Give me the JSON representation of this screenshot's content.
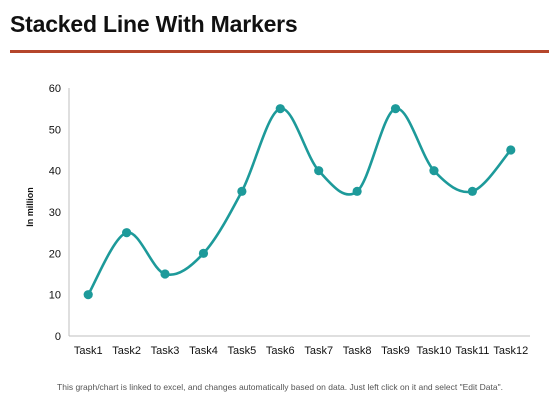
{
  "slide": {
    "title": "Stacked Line With Markers",
    "footnote": "This graph/chart is linked to excel, and changes automatically based on data. Just left click on it and select \"Edit Data\"."
  },
  "colors": {
    "title_rule": "#b5462b",
    "series_line": "#1d9a9a",
    "axis": "#bfbfbf"
  },
  "chart_data": {
    "type": "line",
    "categories": [
      "Task1",
      "Task2",
      "Task3",
      "Task4",
      "Task5",
      "Task6",
      "Task7",
      "Task8",
      "Task9",
      "Task10",
      "Task11",
      "Task12"
    ],
    "series": [
      {
        "values": [
          10,
          25,
          15,
          20,
          35,
          55,
          40,
          35,
          55,
          40,
          35,
          45
        ]
      }
    ],
    "ylabel": "In million",
    "ylim": [
      0,
      60
    ],
    "yticks": [
      0,
      10,
      20,
      30,
      40,
      50,
      60
    ],
    "smooth": true,
    "markers": "circle",
    "grid": false,
    "legend": "none"
  }
}
